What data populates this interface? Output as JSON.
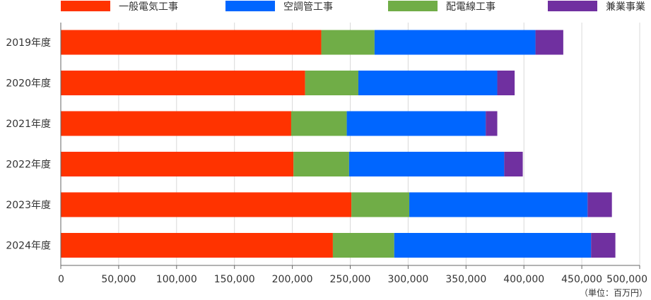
{
  "chart_data": {
    "type": "bar",
    "orientation": "horizontal",
    "stacked": true,
    "categories": [
      "2019年度",
      "2020年度",
      "2021年度",
      "2022年度",
      "2023年度",
      "2024年度"
    ],
    "series": [
      {
        "name": "一般電気工事",
        "color": "#ff3300",
        "values": [
          225000,
          211000,
          199000,
          201000,
          251000,
          235000
        ]
      },
      {
        "name": "配電線工事",
        "color": "#70ad47",
        "values": [
          46000,
          46000,
          48000,
          48000,
          50000,
          53000
        ]
      },
      {
        "name": "空調管工事",
        "color": "#0066ff",
        "values": [
          139000,
          120000,
          120000,
          134000,
          154000,
          170000
        ]
      },
      {
        "name": "兼業事業",
        "color": "#7030a0",
        "values": [
          24000,
          15000,
          10000,
          16000,
          21000,
          21000
        ]
      }
    ],
    "legend_order": [
      0,
      2,
      1,
      3
    ],
    "legend_position": "top",
    "xlim": [
      0,
      500000
    ],
    "xticks": [
      0,
      50000,
      100000,
      150000,
      200000,
      250000,
      300000,
      350000,
      400000,
      450000,
      500000
    ],
    "xtick_labels": [
      "0",
      "50,000",
      "100,000",
      "150,000",
      "200,000",
      "250,000",
      "300,000",
      "350,000",
      "400,000",
      "450,000",
      "500,000"
    ],
    "unit_label": "（単位：百万円）",
    "grid": true
  }
}
